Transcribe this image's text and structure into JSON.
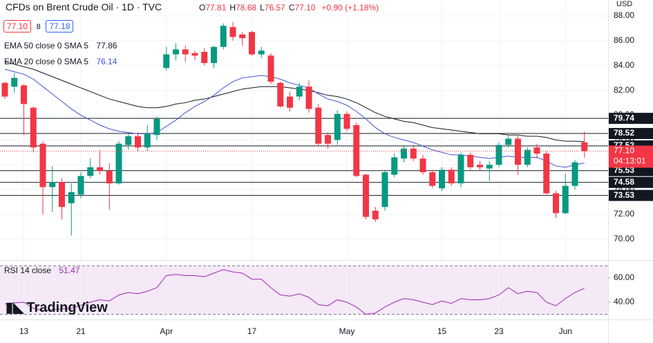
{
  "header": {
    "title": "CFDs on Brent Crude Oil · 1D · TVC",
    "quote": [
      {
        "key": "O",
        "value": "77.81"
      },
      {
        "key": "H",
        "value": "78.68"
      },
      {
        "key": "L",
        "value": "76.57"
      },
      {
        "key": "C",
        "value": "77.10"
      }
    ],
    "change": "+0.90 (+1.18%)",
    "sell": "77.10",
    "spread": "8",
    "buy": "77.18",
    "currency": "USD",
    "logo": "TradingView"
  },
  "chart_data": {
    "type": "candlestick",
    "title": "CFDs on Brent Crude Oil",
    "up_color": "#089981",
    "down_color": "#f23645",
    "categories": [
      null,
      null,
      "13",
      null,
      null,
      null,
      null,
      null,
      "21",
      null,
      null,
      null,
      null,
      null,
      null,
      null,
      null,
      "Apr",
      null,
      null,
      null,
      null,
      null,
      null,
      null,
      null,
      "17",
      null,
      null,
      null,
      null,
      null,
      null,
      null,
      null,
      null,
      "May",
      null,
      null,
      null,
      null,
      null,
      null,
      null,
      null,
      null,
      "15",
      null,
      null,
      null,
      null,
      null,
      "23",
      null,
      null,
      null,
      null,
      null,
      null,
      "Jun",
      null,
      null
    ],
    "open": [
      82.6,
      82.3,
      82.4,
      80.6,
      77.7,
      74.2,
      74.6,
      72.9,
      73.6,
      75.1,
      75.8,
      75.5,
      74.5,
      77.6,
      78.3,
      77.4,
      78.4,
      83.8,
      84.9,
      85.3,
      85.0,
      85.1,
      84.2,
      85.5,
      87.1,
      86.5,
      86.7,
      84.9,
      84.8,
      82.6,
      81.5,
      81.5,
      82.3,
      80.6,
      78.4,
      78.0,
      80.1,
      79.2,
      75.2,
      72.3,
      72.6,
      75.2,
      76.5,
      77.3,
      76.5,
      75.4,
      74.1,
      75.6,
      74.5,
      76.8,
      76.0,
      75.7,
      76.0,
      77.6,
      78.1,
      76.0,
      77.4,
      76.9,
      73.7,
      72.1,
      74.3,
      77.81
    ],
    "high": [
      82.7,
      83.4,
      82.5,
      80.7,
      77.9,
      75.9,
      74.9,
      74.5,
      75.4,
      76.5,
      77.2,
      76.1,
      77.9,
      78.6,
      78.6,
      79.2,
      79.9,
      85.5,
      85.8,
      85.6,
      85.2,
      85.4,
      85.6,
      87.4,
      87.5,
      86.7,
      86.8,
      85.5,
      85.0,
      82.7,
      81.9,
      82.6,
      82.8,
      80.9,
      78.6,
      80.4,
      80.3,
      79.4,
      75.3,
      72.6,
      75.6,
      76.9,
      77.5,
      77.5,
      76.8,
      75.6,
      75.8,
      75.8,
      77.0,
      77.0,
      76.3,
      76.3,
      77.8,
      78.4,
      78.3,
      77.4,
      77.7,
      77.1,
      73.9,
      75.3,
      76.4,
      78.68
    ],
    "low": [
      81.3,
      81.8,
      78.4,
      77.0,
      72.0,
      72.2,
      71.6,
      70.3,
      73.3,
      74.9,
      75.2,
      72.4,
      74.4,
      77.2,
      77.1,
      77.1,
      78.0,
      83.6,
      84.4,
      84.3,
      84.4,
      84.0,
      83.8,
      85.3,
      86.0,
      85.6,
      84.8,
      84.6,
      82.5,
      80.6,
      80.3,
      81.2,
      80.2,
      77.5,
      77.3,
      77.6,
      78.7,
      75.0,
      71.6,
      71.4,
      72.3,
      75.0,
      76.2,
      76.3,
      75.2,
      74.1,
      73.9,
      74.3,
      74.2,
      75.6,
      75.6,
      74.7,
      75.8,
      77.4,
      75.2,
      75.8,
      76.5,
      73.5,
      71.7,
      72.0,
      74.0,
      76.57
    ],
    "close": [
      81.5,
      83.0,
      80.9,
      77.4,
      74.2,
      74.6,
      72.6,
      73.8,
      75.1,
      75.8,
      75.5,
      74.5,
      77.7,
      78.3,
      77.4,
      78.5,
      79.7,
      84.9,
      85.3,
      84.9,
      84.8,
      84.2,
      85.5,
      87.2,
      86.3,
      86.2,
      84.9,
      85.2,
      82.7,
      80.7,
      80.6,
      82.3,
      80.5,
      77.7,
      77.7,
      80.1,
      78.9,
      75.1,
      71.8,
      71.6,
      75.4,
      76.6,
      77.3,
      76.5,
      75.4,
      74.3,
      75.6,
      74.5,
      76.8,
      75.8,
      75.8,
      76.0,
      77.6,
      78.1,
      76.0,
      77.2,
      76.9,
      73.7,
      72.1,
      74.3,
      76.2,
      77.1
    ],
    "lines": [
      {
        "name": "EMA 50 close 0 SMA 5",
        "color": "#131722",
        "values": [
          84.3,
          84.1,
          83.9,
          83.7,
          83.4,
          83.1,
          82.8,
          82.5,
          82.2,
          81.9,
          81.6,
          81.3,
          81.1,
          80.9,
          80.7,
          80.6,
          80.6,
          80.7,
          80.9,
          81.0,
          81.2,
          81.3,
          81.5,
          81.7,
          81.9,
          82.1,
          82.2,
          82.3,
          82.3,
          82.3,
          82.2,
          82.1,
          82.0,
          81.8,
          81.6,
          81.5,
          81.3,
          81.0,
          80.6,
          80.2,
          79.9,
          79.7,
          79.5,
          79.4,
          79.2,
          79.0,
          78.9,
          78.8,
          78.7,
          78.6,
          78.5,
          78.5,
          78.5,
          78.4,
          78.4,
          78.3,
          78.3,
          78.2,
          78.0,
          77.9,
          77.9,
          77.86
        ]
      },
      {
        "name": "EMA 20 close 0 SMA 5",
        "color": "#3f51d6",
        "values": [
          83.7,
          83.5,
          83.3,
          82.9,
          82.3,
          81.7,
          81.1,
          80.5,
          80.0,
          79.6,
          79.2,
          78.9,
          78.7,
          78.6,
          78.5,
          78.5,
          78.6,
          79.1,
          79.6,
          80.2,
          80.7,
          81.1,
          81.6,
          82.2,
          82.7,
          83.0,
          83.1,
          83.2,
          83.1,
          82.9,
          82.6,
          82.4,
          82.2,
          81.7,
          81.3,
          81.1,
          80.8,
          80.3,
          79.7,
          79.0,
          78.5,
          78.2,
          78.0,
          77.8,
          77.5,
          77.2,
          77.0,
          76.8,
          76.8,
          76.7,
          76.6,
          76.5,
          76.6,
          76.7,
          76.6,
          76.6,
          76.6,
          76.3,
          75.9,
          75.8,
          76.0,
          76.14
        ]
      }
    ],
    "ylim": [
      68.38,
      89.28
    ],
    "yticks": [
      {
        "value": 70,
        "label": "70.00"
      },
      {
        "value": 72,
        "label": "72.00"
      },
      {
        "value": 74,
        "label": "74.00"
      },
      {
        "value": 76,
        "label": "76.00"
      },
      {
        "value": 78,
        "label": "78.00"
      },
      {
        "value": 80,
        "label": "80.00"
      },
      {
        "value": 82,
        "label": "82.00"
      },
      {
        "value": 84,
        "label": "84.00"
      },
      {
        "value": 86,
        "label": "86.00"
      },
      {
        "value": 88,
        "label": "88.00"
      }
    ],
    "levels": [
      79.74,
      78.52,
      77.52,
      75.53,
      74.58,
      73.53
    ],
    "last_price": {
      "value": 77.1,
      "label": "77.10"
    },
    "countdown": "04:13:01",
    "rsi": {
      "name": "RSI 14 close",
      "color": "#9c27b0",
      "values": [
        38.5,
        39.5,
        40,
        35,
        33,
        34,
        34.5,
        35,
        37.5,
        40,
        42,
        41,
        46,
        48,
        47,
        49,
        52,
        62,
        63,
        62,
        62,
        61,
        64,
        67,
        65,
        64,
        59,
        59,
        52,
        46,
        45,
        47,
        44,
        38,
        37,
        42,
        40,
        36,
        30,
        31,
        36,
        40,
        43,
        42,
        40,
        38,
        41,
        39,
        43,
        42,
        42,
        43,
        46,
        52,
        47,
        49,
        48,
        40,
        37,
        43,
        48,
        51.47
      ],
      "ylim": [
        25.7,
        73.7
      ],
      "yticks": [
        {
          "value": 40,
          "label": "40.00"
        },
        {
          "value": 60,
          "label": "60.00"
        }
      ],
      "band": [
        30,
        70
      ]
    }
  }
}
